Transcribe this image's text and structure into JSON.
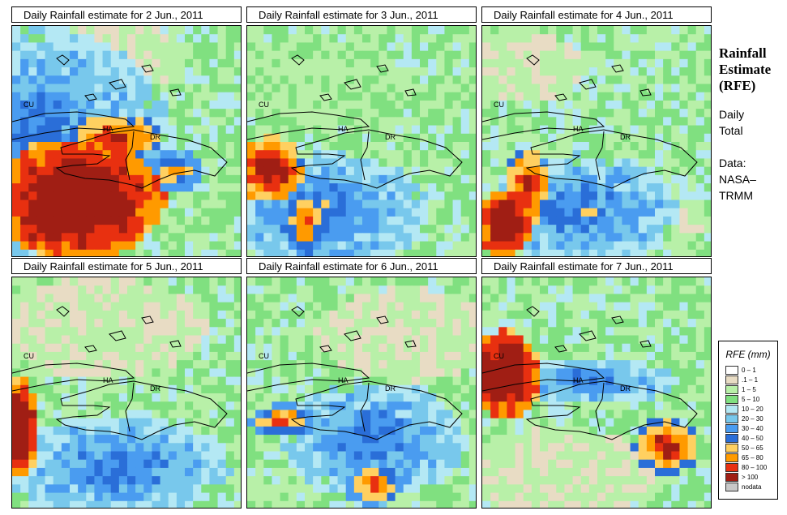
{
  "panels": [
    {
      "title": "Daily Rainfall estimate for  2 Jun., 2011",
      "seed": 11,
      "hot": [
        [
          0.28,
          0.75,
          0.32,
          0.22,
          8
        ],
        [
          0.45,
          0.48,
          0.17,
          0.08,
          6
        ],
        [
          0.7,
          0.63,
          0.12,
          0.08,
          4
        ]
      ],
      "wet": [
        [
          0.1,
          0.5,
          0.6,
          0.5,
          3
        ]
      ],
      "dry": [
        [
          0.4,
          0.15,
          0.35,
          0.18,
          1
        ]
      ]
    },
    {
      "title": "Daily Rainfall estimate for  3 Jun., 2011",
      "seed": 23,
      "hot": [
        [
          0.1,
          0.62,
          0.12,
          0.12,
          7
        ],
        [
          0.25,
          0.85,
          0.08,
          0.12,
          5
        ]
      ],
      "wet": [
        [
          0.35,
          0.8,
          0.45,
          0.25,
          3
        ]
      ],
      "dry": [
        [
          0.3,
          0.25,
          0.4,
          0.2,
          2
        ]
      ]
    },
    {
      "title": "Daily Rainfall estimate for  4 Jun., 2011",
      "seed": 37,
      "hot": [
        [
          0.1,
          0.85,
          0.1,
          0.12,
          8
        ],
        [
          0.2,
          0.7,
          0.08,
          0.15,
          6
        ]
      ],
      "wet": [
        [
          0.45,
          0.8,
          0.4,
          0.25,
          3
        ]
      ],
      "dry": [
        [
          0.15,
          0.18,
          0.3,
          0.15,
          1
        ],
        [
          0.85,
          0.85,
          0.12,
          0.1,
          1
        ]
      ]
    },
    {
      "title": "Daily Rainfall estimate for  5 Jun., 2011",
      "seed": 53,
      "hot": [
        [
          0.04,
          0.65,
          0.06,
          0.18,
          8
        ]
      ],
      "wet": [
        [
          0.45,
          0.82,
          0.5,
          0.22,
          3
        ]
      ],
      "dry": [
        [
          0.4,
          0.22,
          0.45,
          0.22,
          1
        ]
      ]
    },
    {
      "title": "Daily Rainfall estimate for  6 Jun., 2011",
      "seed": 71,
      "hot": [
        [
          0.15,
          0.62,
          0.12,
          0.06,
          5
        ],
        [
          0.55,
          0.9,
          0.1,
          0.08,
          5
        ]
      ],
      "wet": [
        [
          0.55,
          0.7,
          0.4,
          0.25,
          3
        ]
      ],
      "dry": [
        [
          0.7,
          0.25,
          0.4,
          0.2,
          1
        ]
      ]
    },
    {
      "title": "Daily Rainfall estimate for  7 Jun., 2011",
      "seed": 89,
      "hot": [
        [
          0.1,
          0.42,
          0.13,
          0.16,
          8
        ],
        [
          0.8,
          0.73,
          0.12,
          0.1,
          6
        ]
      ],
      "wet": [
        [
          0.45,
          0.45,
          0.4,
          0.1,
          3
        ]
      ],
      "dry": [
        [
          0.35,
          0.85,
          0.4,
          0.2,
          1
        ]
      ]
    }
  ],
  "country_labels": [
    "CU",
    "HA",
    "DR"
  ],
  "side": {
    "title_lines": [
      "Rainfall",
      "Estimate",
      "(RFE)"
    ],
    "daily": [
      "Daily",
      "Total"
    ],
    "data_source": [
      "Data:",
      "NASA–",
      "TRMM"
    ]
  },
  "legend": {
    "title": "RFE (mm)",
    "items": [
      {
        "label": "0 – 1",
        "color": "#ffffff"
      },
      {
        "label": ".1 – 1",
        "color": "#e8dcc4"
      },
      {
        "label": "1 – 5",
        "color": "#b8f0a8"
      },
      {
        "label": "5 – 10",
        "color": "#80e080"
      },
      {
        "label": "10 – 20",
        "color": "#b4e8f4"
      },
      {
        "label": "20 – 30",
        "color": "#78c8ec"
      },
      {
        "label": "30 – 40",
        "color": "#4a9cf0"
      },
      {
        "label": "40 – 50",
        "color": "#2a6ed8"
      },
      {
        "label": "50 – 65",
        "color": "#ffd060"
      },
      {
        "label": "65 – 80",
        "color": "#ff9a00"
      },
      {
        "label": "80 – 100",
        "color": "#e83010"
      },
      {
        "label": "> 100",
        "color": "#a01e14"
      },
      {
        "label": "nodata",
        "color": "#c8c8c8"
      }
    ]
  }
}
